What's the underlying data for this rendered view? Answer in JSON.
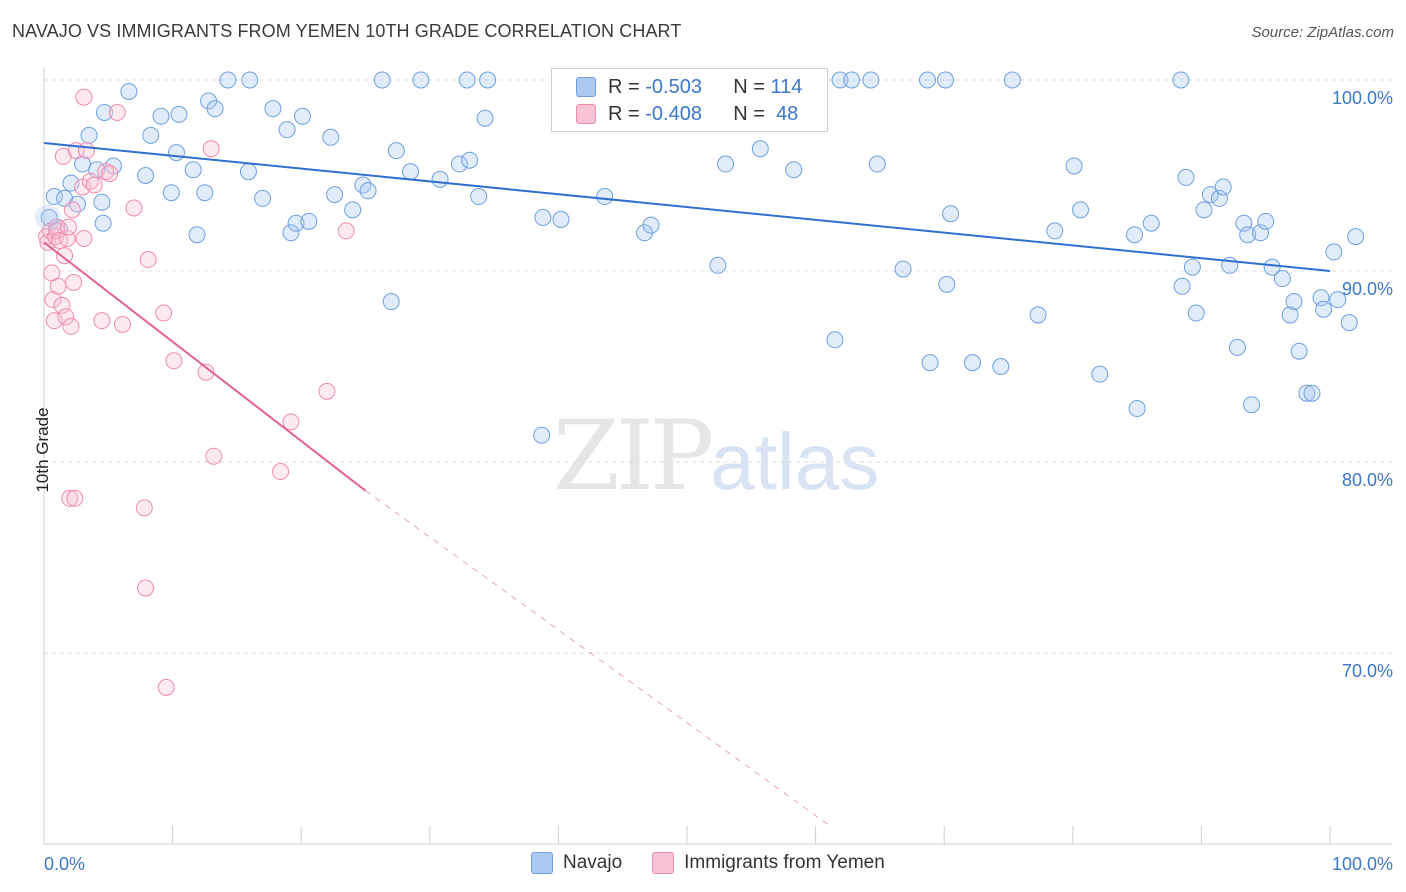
{
  "header": {
    "title": "NAVAJO VS IMMIGRANTS FROM YEMEN 10TH GRADE CORRELATION CHART",
    "source": "Source: ZipAtlas.com"
  },
  "legend": {
    "navajo": {
      "r_label": "R =",
      "r_value": "-0.503",
      "n_label": "N =",
      "n_value": "114"
    },
    "yemen": {
      "r_label": "R =",
      "r_value": "-0.408",
      "n_label": "N =",
      "n_value": "48"
    },
    "bottom": {
      "navajo": "Navajo",
      "yemen": "Immigrants from Yemen"
    }
  },
  "watermark": {
    "zip": "ZIP",
    "atlas": "atlas"
  },
  "chart_data": {
    "type": "scatter",
    "ylabel": "10th Grade",
    "xlim": [
      0,
      100
    ],
    "ylim": [
      61,
      101.5
    ],
    "x_tick_labels": [
      "0.0%",
      "100.0%"
    ],
    "y_ticks": [
      {
        "value": 100,
        "label": "100.0%"
      },
      {
        "value": 90,
        "label": "90.0%"
      },
      {
        "value": 80,
        "label": "80.0%"
      },
      {
        "value": 70,
        "label": "70.0%"
      }
    ],
    "grid": true,
    "colors": {
      "navajo": "#6f9fe0",
      "navajo_line": "#2f6fcf",
      "yemen": "#f08aae",
      "yemen_line": "#e2628f",
      "tick_label": "#3d77c8"
    },
    "series": [
      {
        "name": "Navajo",
        "trend": {
          "x0": 0,
          "y0": 96.7,
          "x1": 100,
          "y1": 90.0
        },
        "points": [
          [
            0.4,
            92.8
          ],
          [
            0.8,
            93.9
          ],
          [
            1.2,
            92.2
          ],
          [
            1.6,
            93.8
          ],
          [
            2.1,
            94.6
          ],
          [
            2.6,
            93.5
          ],
          [
            3.0,
            95.6
          ],
          [
            3.5,
            97.1
          ],
          [
            4.1,
            95.3
          ],
          [
            4.5,
            93.6
          ],
          [
            4.6,
            92.5
          ],
          [
            4.7,
            98.3
          ],
          [
            5.4,
            95.5
          ],
          [
            6.6,
            99.4
          ],
          [
            7.9,
            95.0
          ],
          [
            8.3,
            97.1
          ],
          [
            9.1,
            98.1
          ],
          [
            9.9,
            94.1
          ],
          [
            10.3,
            96.2
          ],
          [
            10.5,
            98.2
          ],
          [
            11.6,
            95.3
          ],
          [
            11.9,
            91.9
          ],
          [
            12.5,
            94.1
          ],
          [
            12.8,
            98.9
          ],
          [
            13.3,
            98.5
          ],
          [
            14.3,
            100.0
          ],
          [
            15.9,
            95.2
          ],
          [
            16.0,
            100.0
          ],
          [
            17.0,
            93.8
          ],
          [
            17.8,
            98.5
          ],
          [
            18.9,
            97.4
          ],
          [
            19.2,
            92.0
          ],
          [
            19.6,
            92.5
          ],
          [
            20.1,
            98.1
          ],
          [
            20.6,
            92.6
          ],
          [
            22.3,
            97.0
          ],
          [
            22.6,
            94.0
          ],
          [
            24.0,
            93.2
          ],
          [
            24.8,
            94.5
          ],
          [
            25.2,
            94.2
          ],
          [
            26.3,
            100.0
          ],
          [
            27.0,
            88.4
          ],
          [
            27.4,
            96.3
          ],
          [
            28.5,
            95.2
          ],
          [
            29.3,
            100.0
          ],
          [
            30.8,
            94.8
          ],
          [
            32.3,
            95.6
          ],
          [
            32.9,
            100.0
          ],
          [
            33.1,
            95.8
          ],
          [
            33.8,
            93.9
          ],
          [
            34.3,
            98.0
          ],
          [
            34.5,
            100.0
          ],
          [
            38.7,
            81.4
          ],
          [
            38.8,
            92.8
          ],
          [
            40.2,
            92.7
          ],
          [
            43.6,
            93.9
          ],
          [
            46.7,
            92.0
          ],
          [
            47.2,
            92.4
          ],
          [
            50.1,
            100.0
          ],
          [
            52.4,
            90.3
          ],
          [
            53.0,
            95.6
          ],
          [
            55.7,
            96.4
          ],
          [
            58.3,
            95.3
          ],
          [
            61.5,
            86.4
          ],
          [
            61.9,
            100.0
          ],
          [
            62.8,
            100.0
          ],
          [
            64.3,
            100.0
          ],
          [
            64.8,
            95.6
          ],
          [
            66.8,
            90.1
          ],
          [
            68.7,
            100.0
          ],
          [
            68.9,
            85.2
          ],
          [
            70.1,
            100.0
          ],
          [
            70.2,
            89.3
          ],
          [
            70.5,
            93.0
          ],
          [
            72.2,
            85.2
          ],
          [
            74.4,
            85.0
          ],
          [
            75.3,
            100.0
          ],
          [
            77.3,
            87.7
          ],
          [
            78.6,
            92.1
          ],
          [
            80.1,
            95.5
          ],
          [
            80.6,
            93.2
          ],
          [
            82.1,
            84.6
          ],
          [
            84.8,
            91.9
          ],
          [
            85.0,
            82.8
          ],
          [
            86.1,
            92.5
          ],
          [
            88.4,
            100.0
          ],
          [
            88.5,
            89.2
          ],
          [
            88.8,
            94.9
          ],
          [
            89.3,
            90.2
          ],
          [
            89.6,
            87.8
          ],
          [
            90.2,
            93.2
          ],
          [
            90.7,
            94.0
          ],
          [
            91.4,
            93.8
          ],
          [
            91.7,
            94.4
          ],
          [
            92.2,
            90.3
          ],
          [
            92.8,
            86.0
          ],
          [
            93.3,
            92.5
          ],
          [
            93.6,
            91.9
          ],
          [
            93.9,
            83.0
          ],
          [
            94.6,
            92.0
          ],
          [
            95.0,
            92.6
          ],
          [
            95.5,
            90.2
          ],
          [
            96.3,
            89.6
          ],
          [
            96.9,
            87.7
          ],
          [
            97.2,
            88.4
          ],
          [
            97.6,
            85.8
          ],
          [
            98.2,
            83.6
          ],
          [
            98.6,
            83.6
          ],
          [
            99.3,
            88.6
          ],
          [
            99.5,
            88.0
          ],
          [
            100.3,
            91.0
          ],
          [
            100.6,
            88.5
          ],
          [
            101.5,
            87.3
          ],
          [
            102.0,
            91.8
          ]
        ]
      },
      {
        "name": "Immigrants from Yemen",
        "trend": {
          "x0": 0,
          "y0": 91.5,
          "x1": 25,
          "y1": 78.5,
          "dash_to_x": 61,
          "dash_to_y": 61
        },
        "points": [
          [
            0.2,
            91.8
          ],
          [
            0.3,
            91.5
          ],
          [
            0.5,
            92.1
          ],
          [
            0.6,
            89.9
          ],
          [
            0.7,
            88.5
          ],
          [
            0.8,
            87.4
          ],
          [
            0.9,
            91.8
          ],
          [
            1.0,
            92.3
          ],
          [
            1.0,
            92.1
          ],
          [
            1.1,
            89.2
          ],
          [
            1.2,
            91.6
          ],
          [
            1.4,
            88.2
          ],
          [
            1.5,
            96.0
          ],
          [
            1.6,
            90.8
          ],
          [
            1.7,
            87.6
          ],
          [
            1.8,
            91.7
          ],
          [
            1.9,
            92.3
          ],
          [
            2.0,
            78.1
          ],
          [
            2.1,
            87.1
          ],
          [
            2.2,
            93.2
          ],
          [
            2.3,
            89.4
          ],
          [
            2.4,
            78.1
          ],
          [
            2.5,
            96.3
          ],
          [
            3.0,
            94.4
          ],
          [
            3.1,
            91.7
          ],
          [
            3.1,
            99.1
          ],
          [
            3.3,
            96.3
          ],
          [
            3.6,
            94.7
          ],
          [
            3.9,
            94.5
          ],
          [
            4.5,
            87.4
          ],
          [
            4.8,
            95.2
          ],
          [
            5.1,
            95.1
          ],
          [
            5.7,
            98.3
          ],
          [
            6.1,
            87.2
          ],
          [
            7.0,
            93.3
          ],
          [
            7.8,
            77.6
          ],
          [
            7.9,
            73.4
          ],
          [
            8.1,
            90.6
          ],
          [
            9.3,
            87.8
          ],
          [
            9.5,
            68.2
          ],
          [
            10.1,
            85.3
          ],
          [
            12.6,
            84.7
          ],
          [
            13.0,
            96.4
          ],
          [
            13.2,
            80.3
          ],
          [
            18.4,
            79.5
          ],
          [
            19.2,
            82.1
          ],
          [
            22.0,
            83.7
          ],
          [
            23.5,
            92.1
          ]
        ]
      }
    ]
  }
}
